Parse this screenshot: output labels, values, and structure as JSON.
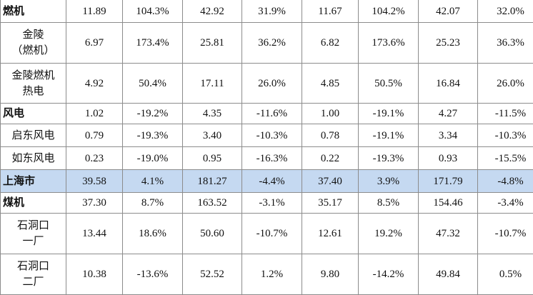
{
  "table": {
    "rows": [
      {
        "label": [
          "燃机"
        ],
        "bold": true,
        "highlight": false,
        "h": "h31",
        "values": [
          "11.89",
          "104.3%",
          "42.92",
          "31.9%",
          "11.67",
          "104.2%",
          "42.07",
          "32.0%"
        ]
      },
      {
        "label": [
          "金陵",
          "（燃机）"
        ],
        "bold": false,
        "highlight": false,
        "h": "h56",
        "values": [
          "6.97",
          "173.4%",
          "25.81",
          "36.2%",
          "6.82",
          "173.6%",
          "25.23",
          "36.3%"
        ]
      },
      {
        "label": [
          "金陵燃机",
          "热电"
        ],
        "bold": false,
        "highlight": false,
        "h": "h55",
        "values": [
          "4.92",
          "50.4%",
          "17.11",
          "26.0%",
          "4.85",
          "50.5%",
          "16.84",
          "26.0%"
        ]
      },
      {
        "label": [
          "风电"
        ],
        "bold": true,
        "highlight": false,
        "h": "h28",
        "values": [
          "1.02",
          "-19.2%",
          "4.35",
          "-11.6%",
          "1.00",
          "-19.1%",
          "4.27",
          "-11.5%"
        ]
      },
      {
        "label": [
          "启东风电"
        ],
        "bold": false,
        "highlight": false,
        "h": "h31",
        "values": [
          "0.79",
          "-19.3%",
          "3.40",
          "-10.3%",
          "0.78",
          "-19.1%",
          "3.34",
          "-10.3%"
        ]
      },
      {
        "label": [
          "如东风电"
        ],
        "bold": false,
        "highlight": false,
        "h": "h31",
        "values": [
          "0.23",
          "-19.0%",
          "0.95",
          "-16.3%",
          "0.22",
          "-19.3%",
          "0.93",
          "-15.5%"
        ]
      },
      {
        "label": [
          "上海市"
        ],
        "bold": true,
        "highlight": true,
        "h": "h31",
        "values": [
          "39.58",
          "4.1%",
          "181.27",
          "-4.4%",
          "37.40",
          "3.9%",
          "171.79",
          "-4.8%"
        ]
      },
      {
        "label": [
          "煤机"
        ],
        "bold": true,
        "highlight": false,
        "h": "h28",
        "values": [
          "37.30",
          "8.7%",
          "163.52",
          "-3.1%",
          "35.17",
          "8.5%",
          "154.46",
          "-3.4%"
        ]
      },
      {
        "label": [
          "石洞口",
          "一厂"
        ],
        "bold": false,
        "highlight": false,
        "h": "h56",
        "values": [
          "13.44",
          "18.6%",
          "50.60",
          "-10.7%",
          "12.61",
          "19.2%",
          "47.32",
          "-10.7%"
        ]
      },
      {
        "label": [
          "石洞口",
          "二厂"
        ],
        "bold": false,
        "highlight": false,
        "h": "h56",
        "values": [
          "10.38",
          "-13.6%",
          "52.52",
          "1.2%",
          "9.80",
          "-14.2%",
          "49.84",
          "0.5%"
        ]
      }
    ]
  }
}
